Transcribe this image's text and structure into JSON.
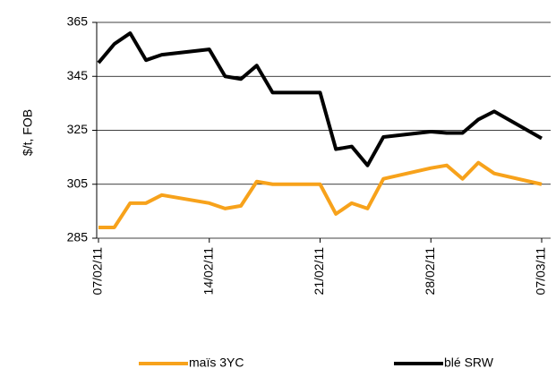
{
  "chart_data": {
    "type": "line",
    "y_label": "$/t, FOB",
    "x": [
      "07/02/11",
      "08/02/11",
      "09/02/11",
      "10/02/11",
      "11/02/11",
      "14/02/11",
      "15/02/11",
      "16/02/11",
      "17/02/11",
      "18/02/11",
      "21/02/11",
      "22/02/11",
      "23/02/11",
      "24/02/11",
      "25/02/11",
      "28/02/11",
      "01/03/11",
      "02/03/11",
      "03/03/11",
      "04/03/11",
      "07/03/11"
    ],
    "series": [
      {
        "name": "maïs 3YC",
        "color": "#f7a21b",
        "values": [
          289,
          289,
          298,
          298,
          301,
          298,
          296,
          297,
          306,
          305,
          305,
          294,
          298,
          296,
          307,
          311,
          312,
          307,
          313,
          309,
          305
        ]
      },
      {
        "name": "blé SRW",
        "color": "#000000",
        "values": [
          350,
          357,
          361,
          351,
          353,
          355,
          345,
          344,
          349,
          339,
          339,
          318,
          319,
          312,
          322.5,
          324.5,
          324,
          324,
          329,
          332,
          322
        ]
      }
    ],
    "xlim": [
      "07/02/11",
      "07/03/11"
    ],
    "xticks": [
      "07/02/11",
      "14/02/11",
      "21/02/11",
      "28/02/11",
      "07/03/11"
    ],
    "ylim": [
      285,
      365
    ],
    "yticks": [
      285,
      305,
      325,
      345,
      365
    ],
    "grid": true,
    "legend": "bottom"
  }
}
